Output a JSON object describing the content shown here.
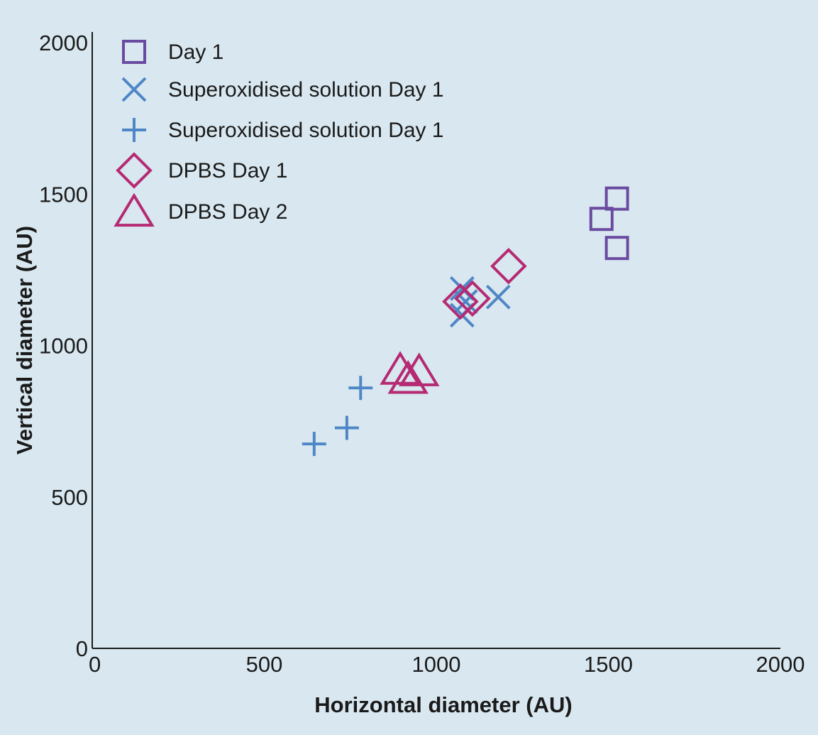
{
  "chart_data": {
    "type": "scatter",
    "title": "",
    "xlabel": "Horizontal diameter (AU)",
    "ylabel": "Vertical diameter (AU)",
    "xlim": [
      0,
      2000
    ],
    "ylim": [
      0,
      2000
    ],
    "x_ticks": [
      "0",
      "500",
      "1000",
      "1500",
      "2000"
    ],
    "y_ticks": [
      "0",
      "500",
      "1000",
      "1500",
      "2000"
    ],
    "grid": false,
    "legend_position": "top-left",
    "series": [
      {
        "name": "Day 1",
        "marker": "square",
        "color": "#6a4ba0",
        "points": [
          [
            1480,
            1418
          ],
          [
            1525,
            1485
          ],
          [
            1525,
            1322
          ]
        ]
      },
      {
        "name": "Superoxidised solution Day 1",
        "marker": "x",
        "color": "#4f87c6",
        "points": [
          [
            1075,
            1100
          ],
          [
            1075,
            1188
          ],
          [
            1085,
            1145
          ],
          [
            1180,
            1160
          ]
        ]
      },
      {
        "name": "Superoxidised solution Day 1",
        "marker": "plus",
        "color": "#4f87c6",
        "points": [
          [
            645,
            675
          ],
          [
            740,
            728
          ],
          [
            780,
            860
          ]
        ]
      },
      {
        "name": "DPBS Day 1",
        "marker": "diamond",
        "color": "#b52a73",
        "points": [
          [
            1070,
            1145
          ],
          [
            1105,
            1155
          ],
          [
            1210,
            1262
          ]
        ]
      },
      {
        "name": "DPBS Day 2",
        "marker": "triangle",
        "color": "#b52a73",
        "points": [
          [
            895,
            920
          ],
          [
            918,
            890
          ],
          [
            950,
            915
          ]
        ]
      }
    ]
  }
}
